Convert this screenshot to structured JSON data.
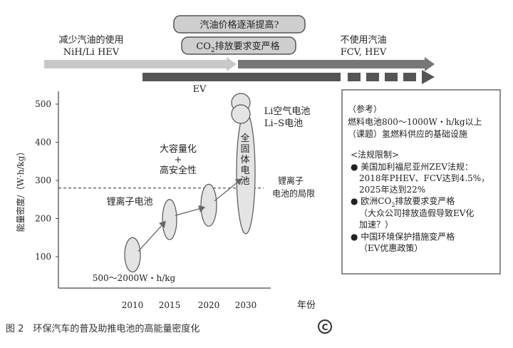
{
  "top": {
    "box_rising_price": "汽油价格逐渐提高?",
    "box_co2_pre": "CO",
    "box_co2_sub": "2",
    "box_co2_post": "排放要求变严格",
    "left_label_1": "减少汽油的使用",
    "left_label_2": "NiH/Li HEV",
    "right_label_1": "不使用汽油",
    "right_label_2": "FCV, HEV",
    "ev_label": "EV"
  },
  "chart_data": {
    "type": "scatter",
    "ylabel": "能量密度/（W·h/kg）",
    "xlabel": "年份",
    "x_ticks": [
      "2010",
      "2015",
      "2020",
      "2030"
    ],
    "y_ticks": [
      100,
      200,
      300,
      400,
      500
    ],
    "ylim": [
      0,
      560
    ],
    "threshold": {
      "value": 280,
      "label_1": "锂离子",
      "label_2": "电池的局限"
    },
    "points": [
      {
        "x": "2010",
        "y_low": 60,
        "y_high": 150
      },
      {
        "x": "2015",
        "y_low": 145,
        "y_high": 250
      },
      {
        "x": "2020",
        "y_low": 180,
        "y_high": 290
      },
      {
        "x": "2030",
        "y_low": 160,
        "y_high": 480
      }
    ],
    "annotations": {
      "li_ion": "锂离子电池",
      "cap_1": "大容量化",
      "cap_plus": "+",
      "cap_2": "高安全性",
      "solid_1": "全",
      "solid_2": "固",
      "solid_3": "体",
      "solid_4": "电",
      "solid_5": "池",
      "li_air": "Li空气电池",
      "li_s": "Li–S电池",
      "range_label": "500～2000W・h/kg"
    }
  },
  "notes": {
    "ref_title": "（参考）",
    "ref_line1": "燃料电池800～1000W・h/kg以上",
    "ref_line2": "（课题）氢燃料供应的基础设施",
    "reg_title": "<法规限制>",
    "reg_1a": "● 美国加利福尼亚州ZEV法规：",
    "reg_1b": "2018年PHEV、FCV达到4.5%，",
    "reg_1c": "2025年达到22%",
    "reg_2a_pre": "● 欧洲CO",
    "reg_2a_sub": "2",
    "reg_2a_post": "排放要求变严格",
    "reg_2b": "（大众公司排放造假导致EV化",
    "reg_2c": "加速？）",
    "reg_3a": "● 中国环境保护措施变严格",
    "reg_3b": "（EV优惠政策）"
  },
  "caption": "图 2　环保汽车的普及助推电池的高能量密度化",
  "logo_text": "C"
}
